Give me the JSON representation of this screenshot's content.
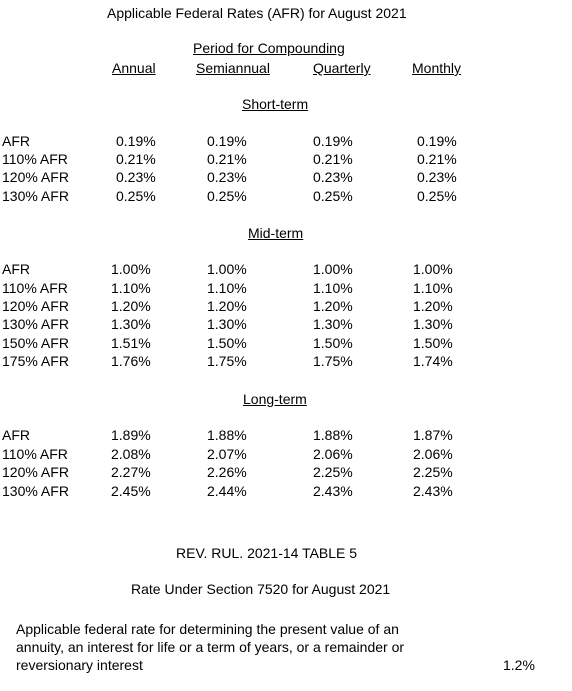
{
  "title": "Applicable Federal Rates (AFR) for August 2021",
  "header": {
    "group_label": "Period for Compounding",
    "columns": [
      "Annual",
      "Semiannual",
      "Quarterly",
      "Monthly"
    ]
  },
  "sections": [
    {
      "name": "Short-term",
      "rows": [
        {
          "label": "AFR",
          "values": [
            "0.19%",
            "0.19%",
            "0.19%",
            "0.19%"
          ]
        },
        {
          "label": "110% AFR",
          "values": [
            "0.21%",
            "0.21%",
            "0.21%",
            "0.21%"
          ]
        },
        {
          "label": "120% AFR",
          "values": [
            "0.23%",
            "0.23%",
            "0.23%",
            "0.23%"
          ]
        },
        {
          "label": "130% AFR",
          "values": [
            "0.25%",
            "0.25%",
            "0.25%",
            "0.25%"
          ]
        }
      ]
    },
    {
      "name": "Mid-term",
      "rows": [
        {
          "label": "AFR",
          "values": [
            "1.00%",
            "1.00%",
            "1.00%",
            "1.00%"
          ]
        },
        {
          "label": "110% AFR",
          "values": [
            "1.10%",
            "1.10%",
            "1.10%",
            "1.10%"
          ]
        },
        {
          "label": "120% AFR",
          "values": [
            "1.20%",
            "1.20%",
            "1.20%",
            "1.20%"
          ]
        },
        {
          "label": "130% AFR",
          "values": [
            "1.30%",
            "1.30%",
            "1.30%",
            "1.30%"
          ]
        },
        {
          "label": "150% AFR",
          "values": [
            "1.51%",
            "1.50%",
            "1.50%",
            "1.50%"
          ]
        },
        {
          "label": "175% AFR",
          "values": [
            "1.76%",
            "1.75%",
            "1.75%",
            "1.74%"
          ]
        }
      ]
    },
    {
      "name": "Long-term",
      "rows": [
        {
          "label": "AFR",
          "values": [
            "1.89%",
            "1.88%",
            "1.88%",
            "1.87%"
          ]
        },
        {
          "label": "110% AFR",
          "values": [
            "2.08%",
            "2.07%",
            "2.06%",
            "2.06%"
          ]
        },
        {
          "label": "120% AFR",
          "values": [
            "2.27%",
            "2.26%",
            "2.25%",
            "2.25%"
          ]
        },
        {
          "label": "130% AFR",
          "values": [
            "2.45%",
            "2.44%",
            "2.43%",
            "2.43%"
          ]
        }
      ]
    }
  ],
  "rev_rul": "REV. RUL. 2021-14 TABLE 5",
  "section_7520_title": "Rate Under Section 7520 for August 2021",
  "section_7520_desc": [
    "Applicable federal rate for determining the present value of an",
    "annuity, an interest for life or a term of years, or a remainder or",
    "reversionary interest"
  ],
  "section_7520_rate": "1.2%"
}
